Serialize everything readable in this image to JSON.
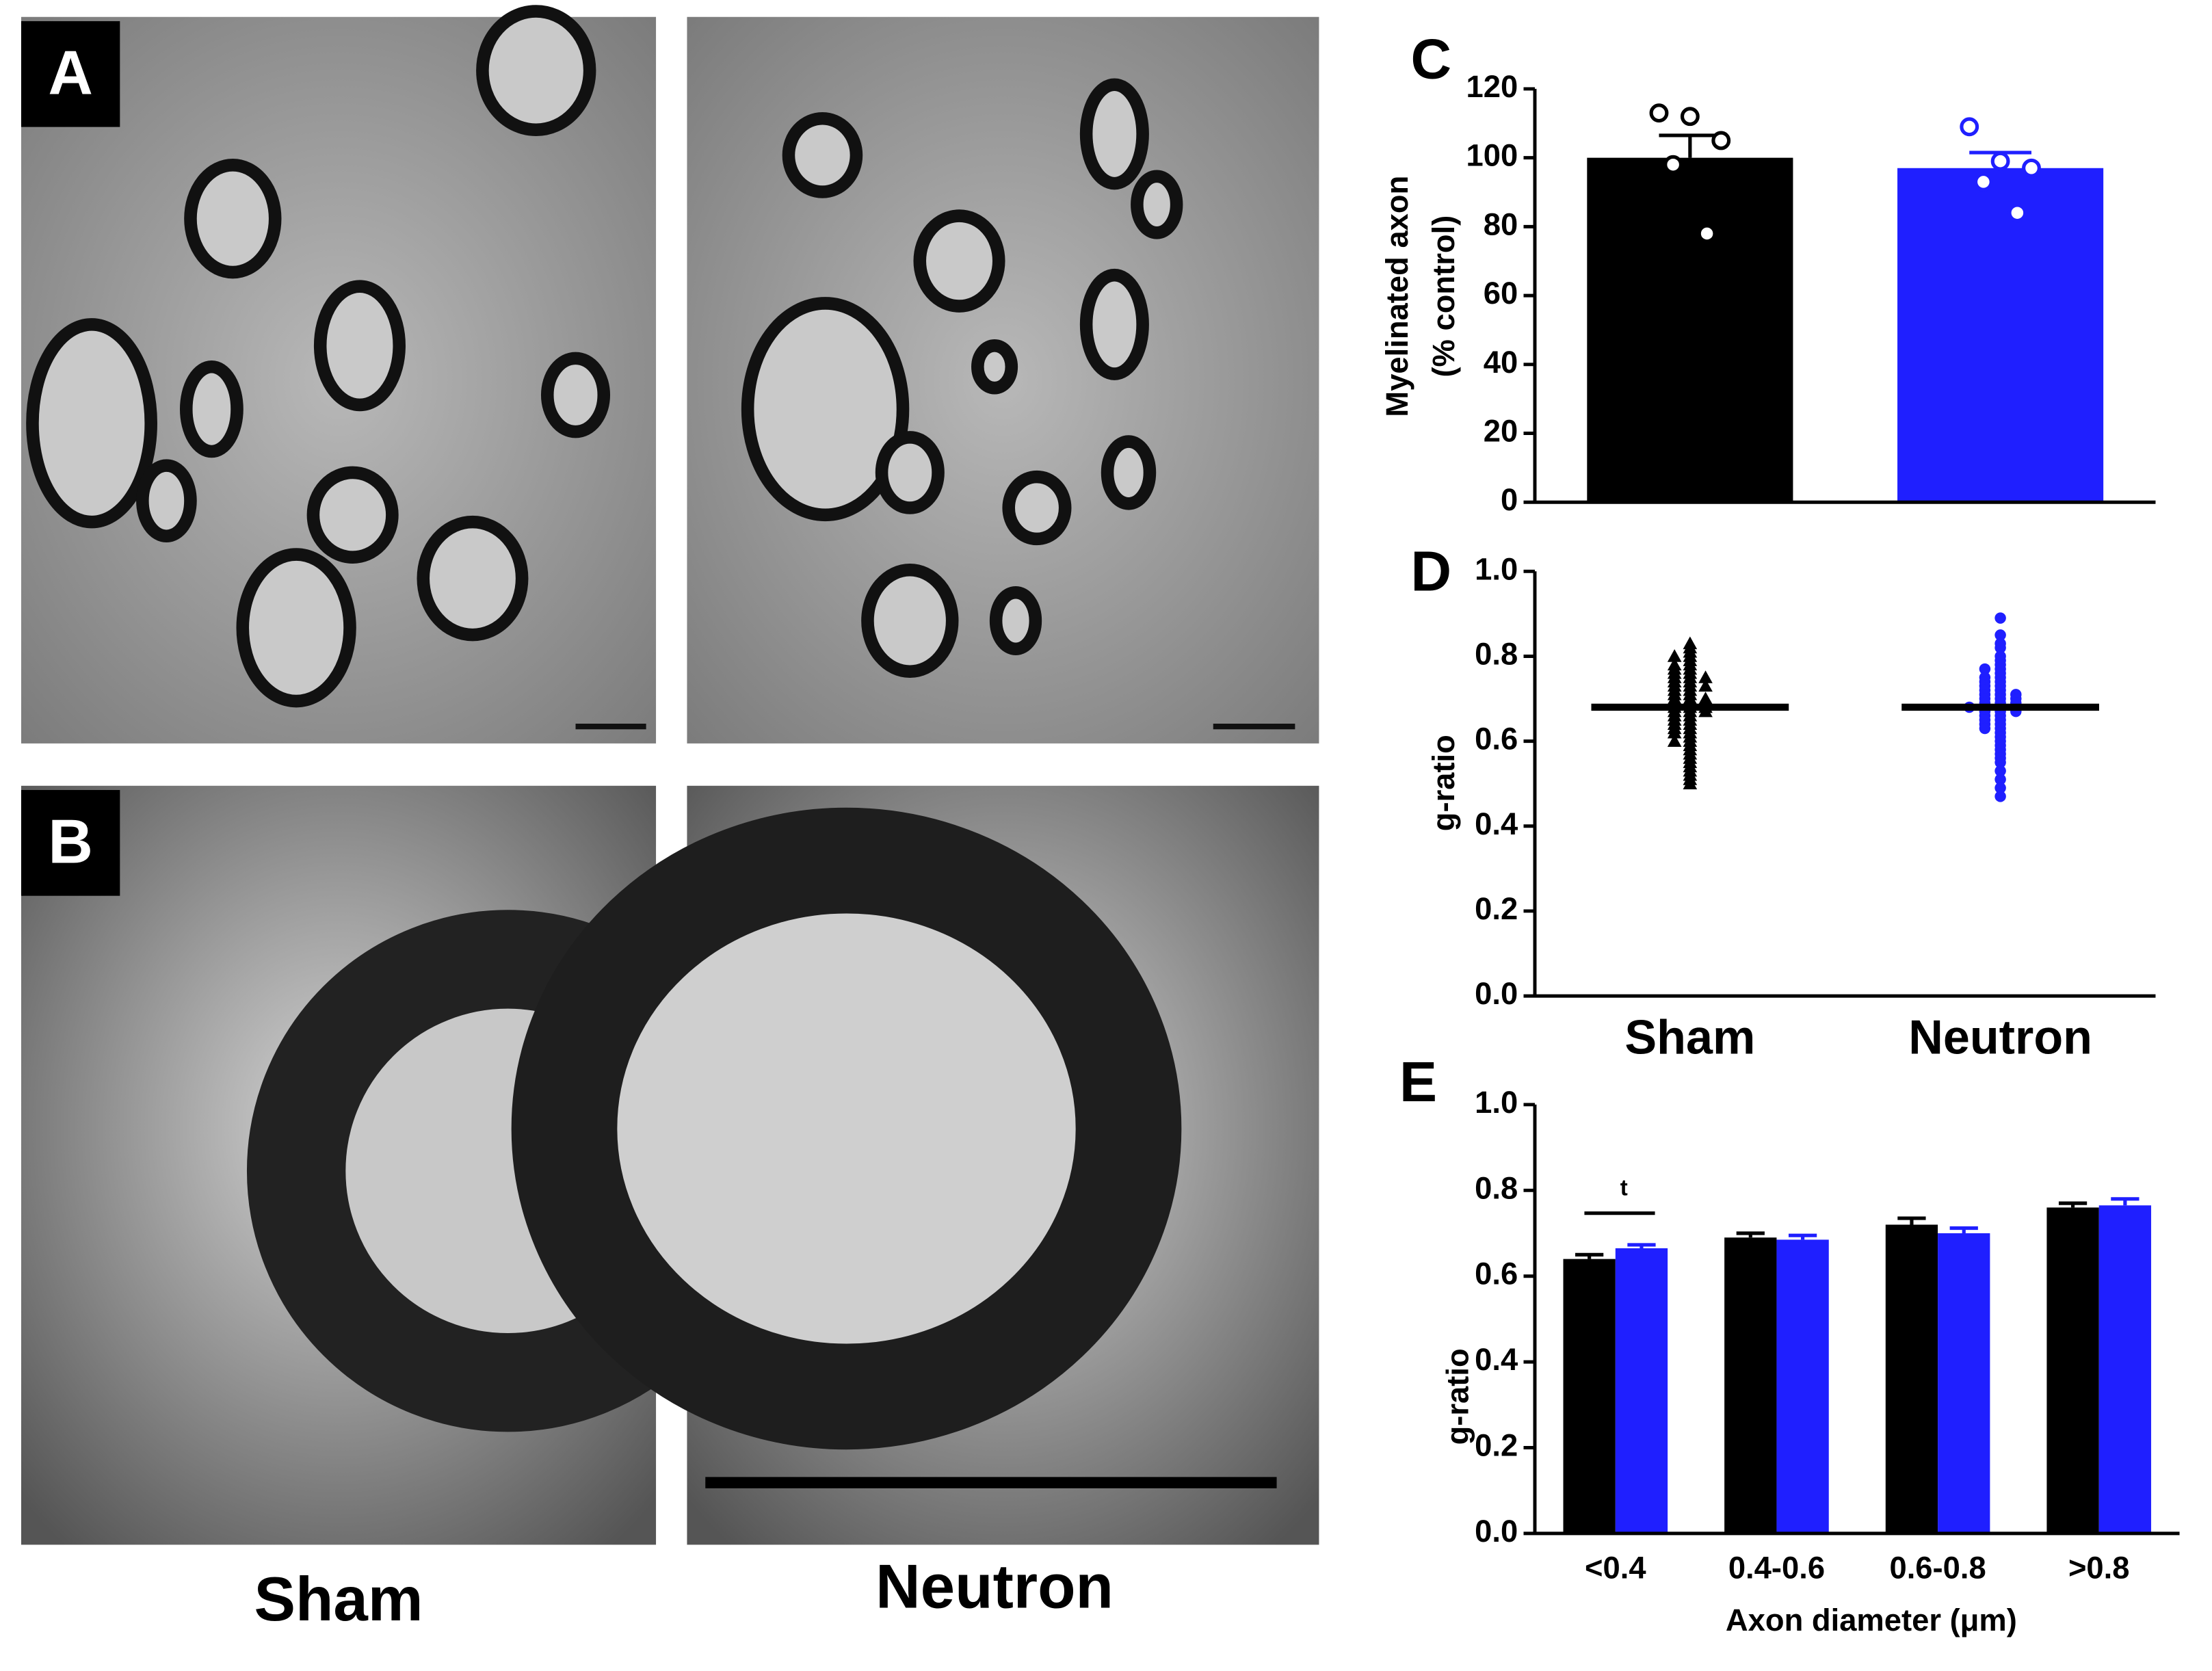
{
  "panels": {
    "A": "A",
    "B": "B"
  },
  "captions": [
    "Sham",
    "Neutron"
  ],
  "chart_data": [
    {
      "type": "bar",
      "title": "C",
      "ylabel": [
        "Myelinated axon",
        "(% control)"
      ],
      "values": [
        100,
        97
      ],
      "errors": [
        6.5,
        4.5
      ],
      "colors": [
        "#000000",
        "#1f1fff"
      ],
      "points": [
        [
          113,
          112,
          105,
          98,
          78
        ],
        [
          109,
          99,
          97,
          93,
          84
        ]
      ],
      "ylim": [
        0,
        120
      ],
      "yticks": [
        0,
        20,
        40,
        60,
        80,
        100,
        120
      ]
    },
    {
      "type": "strip",
      "title": "D",
      "ylabel": "g-ratio",
      "categories": [
        "Sham",
        "Neutron"
      ],
      "means": [
        0.68,
        0.68
      ],
      "series": [
        {
          "color": "#000000",
          "marker": "triangle",
          "values": [
            0.83,
            0.82,
            0.81,
            0.8,
            0.8,
            0.79,
            0.78,
            0.78,
            0.77,
            0.77,
            0.76,
            0.76,
            0.75,
            0.75,
            0.75,
            0.74,
            0.74,
            0.73,
            0.73,
            0.73,
            0.72,
            0.72,
            0.71,
            0.71,
            0.7,
            0.7,
            0.7,
            0.69,
            0.69,
            0.69,
            0.68,
            0.68,
            0.68,
            0.67,
            0.67,
            0.67,
            0.66,
            0.66,
            0.65,
            0.65,
            0.64,
            0.64,
            0.63,
            0.63,
            0.62,
            0.62,
            0.61,
            0.6,
            0.6,
            0.59,
            0.58,
            0.57,
            0.56,
            0.55,
            0.54,
            0.53,
            0.52,
            0.51,
            0.5
          ]
        },
        {
          "color": "#1f1fff",
          "marker": "circle",
          "values": [
            0.89,
            0.85,
            0.83,
            0.82,
            0.8,
            0.79,
            0.78,
            0.77,
            0.77,
            0.76,
            0.75,
            0.75,
            0.74,
            0.74,
            0.73,
            0.73,
            0.72,
            0.72,
            0.71,
            0.71,
            0.71,
            0.7,
            0.7,
            0.7,
            0.69,
            0.69,
            0.69,
            0.68,
            0.68,
            0.68,
            0.68,
            0.67,
            0.67,
            0.67,
            0.66,
            0.66,
            0.65,
            0.65,
            0.64,
            0.64,
            0.63,
            0.63,
            0.62,
            0.61,
            0.6,
            0.59,
            0.58,
            0.57,
            0.56,
            0.55,
            0.53,
            0.51,
            0.49,
            0.47
          ]
        }
      ],
      "ylim": [
        0,
        1
      ],
      "yticks": [
        {
          "value": 0,
          "label": "0.0"
        },
        0.2,
        0.4,
        0.6,
        0.8,
        {
          "value": 1,
          "label": "1.0"
        }
      ]
    },
    {
      "type": "grouped_bar",
      "title": "E",
      "ylabel": "g-ratio",
      "xlabel": "Axon diameter (μm)",
      "categories": [
        "<0.4",
        "0.4-0.6",
        "0.6-0.8",
        ">0.8"
      ],
      "series": [
        {
          "color": "#000000",
          "values": [
            0.64,
            0.69,
            0.72,
            0.76
          ],
          "errors": [
            0.01,
            0.01,
            0.015,
            0.01
          ]
        },
        {
          "color": "#1f1fff",
          "values": [
            0.665,
            0.685,
            0.7,
            0.765
          ],
          "errors": [
            0.008,
            0.01,
            0.012,
            0.015
          ]
        }
      ],
      "annotation": "t",
      "ylim": [
        0,
        1
      ],
      "yticks": [
        {
          "value": 0,
          "label": "0.0"
        },
        0.2,
        0.4,
        0.6,
        0.8,
        {
          "value": 1,
          "label": "1.0"
        }
      ]
    }
  ]
}
